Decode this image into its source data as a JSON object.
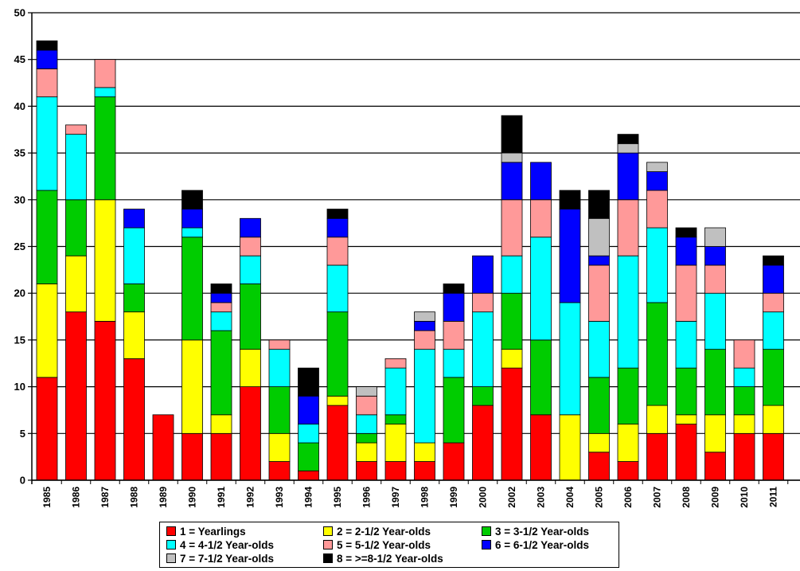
{
  "chart_data": {
    "type": "stacked-bar",
    "title": "",
    "xlabel": "",
    "ylabel": "",
    "ylim": [
      0,
      50
    ],
    "yticks": [
      0,
      5,
      10,
      15,
      20,
      25,
      30,
      35,
      40,
      45,
      50
    ],
    "grid": true,
    "legend_position": "bottom",
    "categories": [
      "1985",
      "1986",
      "1987",
      "1988",
      "1989",
      "1990",
      "1991",
      "1992",
      "1993",
      "1994",
      "1995",
      "1996",
      "1997",
      "1998",
      "1999",
      "2000",
      "2002",
      "2003",
      "2004",
      "2005",
      "2006",
      "2007",
      "2008",
      "2009",
      "2010",
      "2011"
    ],
    "series": [
      {
        "name": "1 = Yearlings",
        "color": "#ff0000",
        "values": [
          11,
          18,
          17,
          13,
          7,
          5,
          5,
          10,
          2,
          1,
          8,
          2,
          2,
          2,
          4,
          8,
          12,
          7,
          0,
          3,
          2,
          5,
          6,
          3,
          5,
          5
        ]
      },
      {
        "name": "2 = 2-1/2 Year-olds",
        "color": "#ffff00",
        "values": [
          10,
          6,
          13,
          5,
          0,
          10,
          2,
          4,
          3,
          0,
          1,
          2,
          4,
          2,
          0,
          0,
          2,
          0,
          7,
          2,
          4,
          3,
          1,
          4,
          2,
          3
        ]
      },
      {
        "name": "3 = 3-1/2 Year-olds",
        "color": "#00cc00",
        "values": [
          10,
          6,
          11,
          3,
          0,
          11,
          9,
          7,
          5,
          3,
          9,
          1,
          1,
          0,
          7,
          2,
          6,
          8,
          0,
          6,
          6,
          11,
          5,
          7,
          3,
          6
        ]
      },
      {
        "name": "4 = 4-1/2 Year-olds",
        "color": "#00ffff",
        "values": [
          10,
          7,
          1,
          6,
          0,
          1,
          2,
          3,
          4,
          2,
          5,
          2,
          5,
          10,
          3,
          8,
          4,
          11,
          12,
          6,
          12,
          8,
          5,
          6,
          2,
          4
        ]
      },
      {
        "name": "5 = 5-1/2 Year-olds",
        "color": "#ff9999",
        "values": [
          3,
          1,
          3,
          0,
          0,
          0,
          1,
          2,
          1,
          0,
          3,
          2,
          1,
          2,
          3,
          2,
          6,
          4,
          0,
          6,
          6,
          4,
          6,
          3,
          3,
          2
        ]
      },
      {
        "name": "6 = 6-1/2 Year-olds",
        "color": "#0000ff",
        "values": [
          2,
          0,
          0,
          2,
          0,
          2,
          1,
          2,
          0,
          3,
          2,
          0,
          0,
          1,
          3,
          4,
          4,
          4,
          10,
          1,
          5,
          2,
          3,
          2,
          0,
          3
        ]
      },
      {
        "name": "7 = 7-1/2 Year-olds",
        "color": "#c0c0c0",
        "values": [
          0,
          0,
          0,
          0,
          0,
          0,
          0,
          0,
          0,
          0,
          0,
          1,
          0,
          1,
          0,
          0,
          1,
          0,
          0,
          4,
          1,
          1,
          0,
          2,
          0,
          0
        ]
      },
      {
        "name": "8 = >=8-1/2 Year-olds",
        "color": "#000000",
        "values": [
          1,
          0,
          0,
          0,
          0,
          2,
          1,
          0,
          0,
          3,
          1,
          0,
          0,
          0,
          1,
          0,
          4,
          0,
          2,
          3,
          1,
          0,
          1,
          0,
          0,
          1
        ]
      }
    ]
  }
}
